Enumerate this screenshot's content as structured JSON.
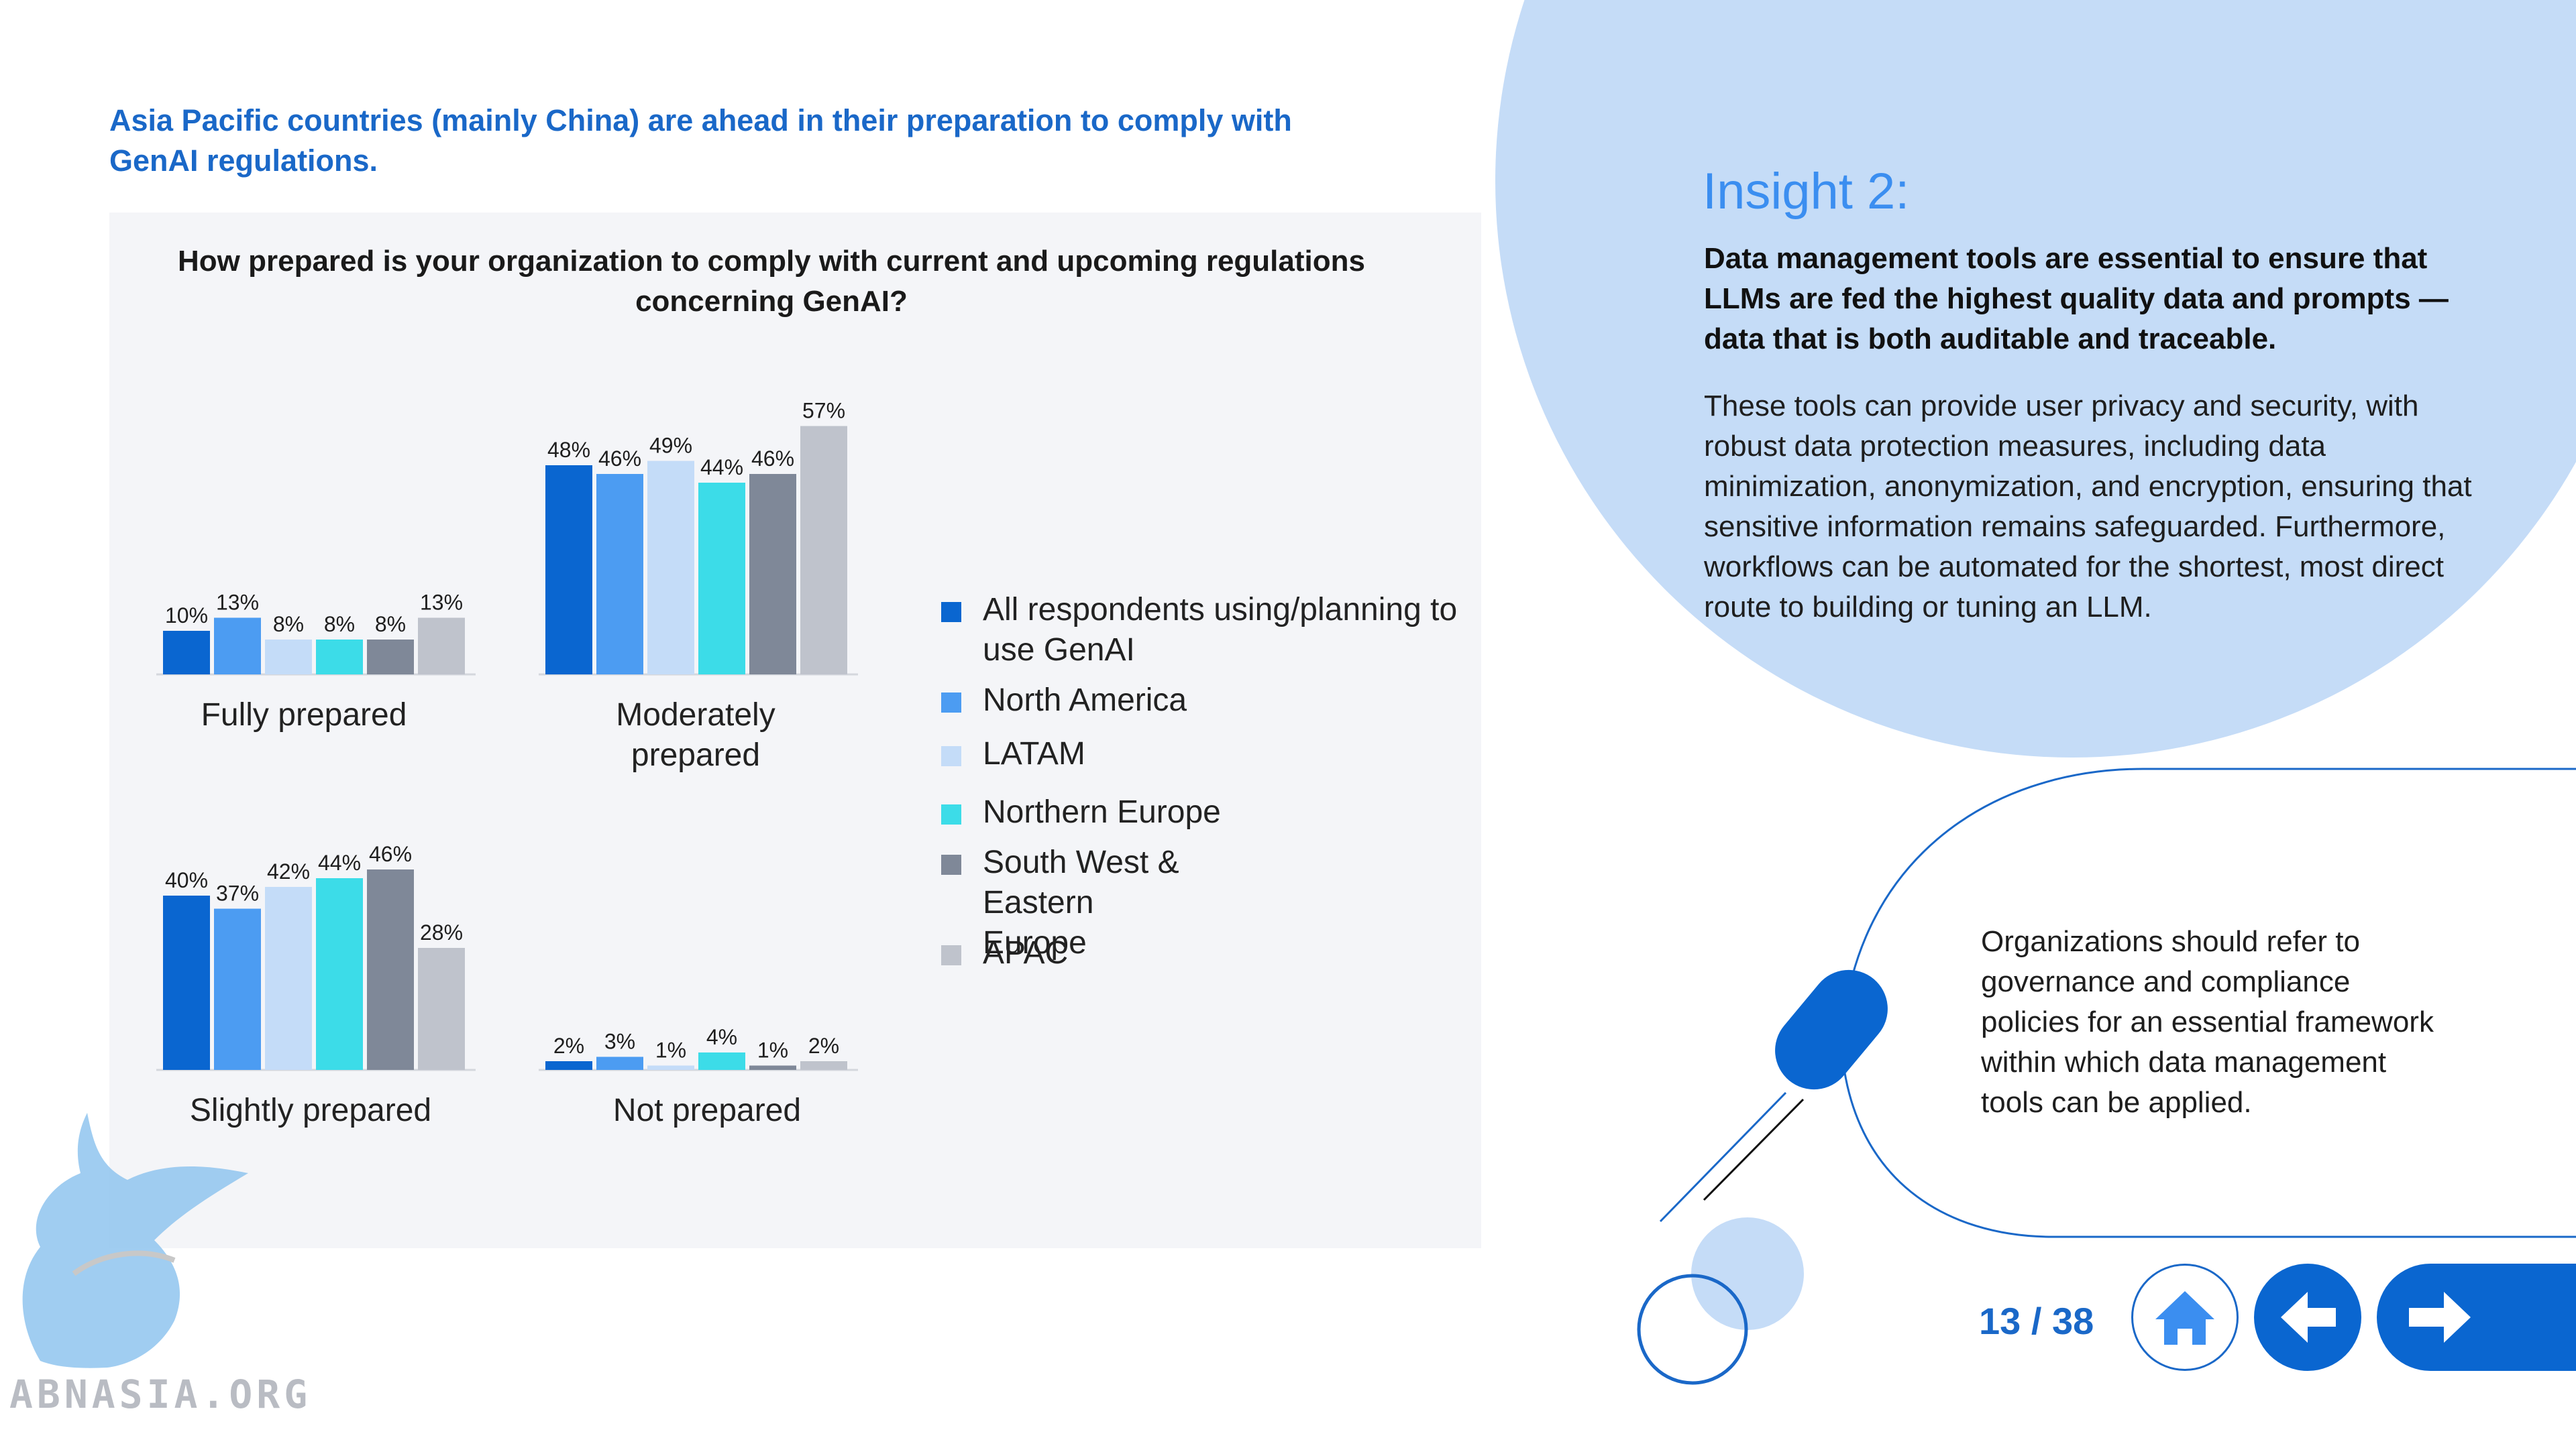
{
  "headline": "Asia Pacific countries (mainly China) are ahead in their preparation to comply with GenAI regulations.",
  "insight": {
    "title": "Insight 2:",
    "lead": "Data management tools are essential to ensure that LLMs are fed the highest quality data and prompts — data that is both auditable and traceable.",
    "body": "These tools can provide user privacy and security, with robust data protection measures, including data minimization, anonymization, and encryption, ensuring that sensitive information remains safeguarded. Furthermore, workflows can be automated for the shortest, most direct route to building or tuning an LLM."
  },
  "callout": "Organizations should refer to governance and compliance policies for an essential framework within which data management tools can be applied.",
  "navigation": {
    "page": "13 / 38",
    "home_icon": "home-icon",
    "prev_icon": "arrow-left-icon",
    "next_icon": "arrow-right-icon"
  },
  "watermark": {
    "text": "ABNASIA.ORG",
    "icon": "griffin-logo"
  },
  "colors": {
    "accent": "#1a68c8",
    "all": "#0a66d0",
    "na": "#4c9cf2",
    "latam": "#c4dcf8",
    "neu": "#3cdce8",
    "swe": "#7f8898",
    "apac": "#bfc3cc"
  },
  "chart_data": {
    "type": "bar",
    "title": "How prepared is your organization to comply with current and upcoming regulations concerning GenAI?",
    "categories": [
      "Fully prepared",
      "Moderately prepared",
      "Slightly prepared",
      "Not prepared"
    ],
    "series": [
      {
        "name": "All respondents using/planning to use GenAI",
        "color": "#0a66d0",
        "values": [
          10,
          48,
          40,
          2
        ]
      },
      {
        "name": "North America",
        "color": "#4c9cf2",
        "values": [
          13,
          46,
          37,
          3
        ]
      },
      {
        "name": "LATAM",
        "color": "#c4dcf8",
        "values": [
          8,
          49,
          42,
          1
        ]
      },
      {
        "name": "Northern Europe",
        "color": "#3cdce8",
        "values": [
          8,
          44,
          44,
          4
        ]
      },
      {
        "name": "South West & Eastern Europe",
        "color": "#7f8898",
        "values": [
          8,
          46,
          46,
          1
        ]
      },
      {
        "name": "APAC",
        "color": "#bfc3cc",
        "values": [
          13,
          57,
          28,
          2
        ]
      }
    ],
    "value_suffix": "%",
    "legend_position": "right",
    "grid": false
  }
}
